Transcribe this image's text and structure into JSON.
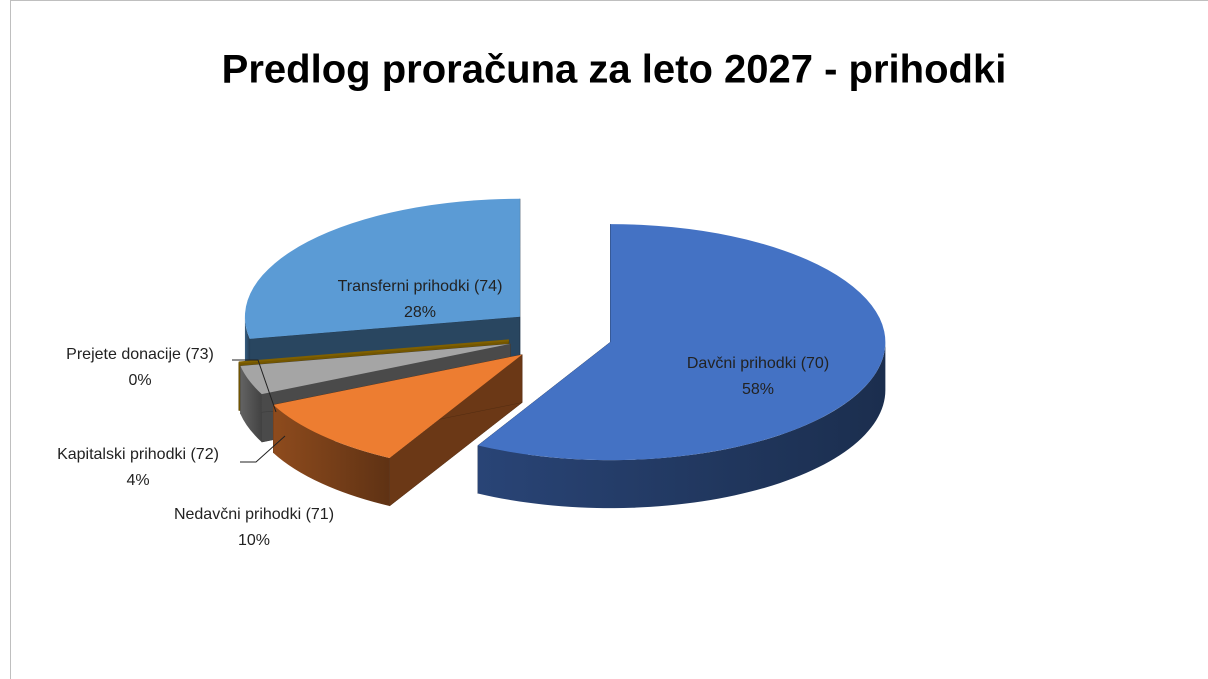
{
  "chart_data": {
    "type": "pie",
    "title": "Predlog proračuna za leto 2027 - prihodki",
    "categories": [
      "Davčni prihodki (70)",
      "Nedavčni prihodki (71)",
      "Kapitalski prihodki (72)",
      "Prejete donacije (73)",
      "Transferni prihodki (74)"
    ],
    "values": [
      58,
      10,
      4,
      0,
      28
    ],
    "value_labels": [
      "58%",
      "10%",
      "4%",
      "0%",
      "28%"
    ],
    "colors": [
      "#4472c4",
      "#ed7d31",
      "#a5a5a5",
      "#ffc000",
      "#5b9bd5"
    ],
    "three_d": true,
    "exploded": true
  }
}
